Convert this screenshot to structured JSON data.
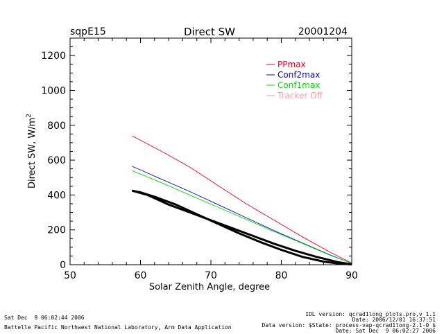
{
  "header": {
    "site": "sqpE15",
    "date": "20001204"
  },
  "chart_data": {
    "type": "line",
    "title": "Direct SW",
    "xlabel": "Solar Zenith Angle, degree",
    "ylabel_main": "Direct SW, W/m",
    "ylabel_sup": "2",
    "xlim": [
      50,
      90
    ],
    "ylim": [
      0,
      1300
    ],
    "xticks": [
      50,
      60,
      70,
      80,
      90
    ],
    "yticks": [
      0,
      200,
      400,
      600,
      800,
      1000,
      1200
    ],
    "legend_position": "top-right",
    "grid": false,
    "series": [
      {
        "name": "PPmax",
        "color": "#e8001c",
        "style": "thin",
        "x": [
          58.8,
          63,
          67,
          71,
          75,
          79,
          83,
          87,
          90
        ],
        "y": [
          740,
          650,
          560,
          455,
          350,
          255,
          160,
          70,
          10
        ]
      },
      {
        "name": "Conf2max",
        "color": "#0000cc",
        "style": "thin",
        "x": [
          58.8,
          63,
          67,
          71,
          75,
          79,
          83,
          87,
          90
        ],
        "y": [
          565,
          490,
          420,
          345,
          270,
          195,
          125,
          55,
          8
        ]
      },
      {
        "name": "Conf1max",
        "color": "#00dd00",
        "style": "thin",
        "x": [
          58.8,
          63,
          67,
          71,
          75,
          79,
          83,
          87,
          90
        ],
        "y": [
          540,
          470,
          400,
          330,
          260,
          190,
          122,
          53,
          8
        ]
      },
      {
        "name": "Tracker Off",
        "color": "#ff9a9a",
        "style": "none",
        "x": [],
        "y": []
      },
      {
        "name": "",
        "color": "#000000",
        "style": "thick",
        "x": [
          58.8,
          61,
          64,
          67,
          70,
          73,
          76,
          79,
          82,
          85,
          88,
          90
        ],
        "y": [
          425,
          400,
          345,
          300,
          255,
          210,
          165,
          120,
          80,
          45,
          15,
          2
        ]
      },
      {
        "name": "",
        "color": "#000000",
        "style": "thick",
        "x": [
          58.8,
          60,
          62,
          65,
          68,
          71,
          74,
          77,
          80,
          83,
          86,
          88,
          90
        ],
        "y": [
          425,
          415,
          390,
          345,
          290,
          235,
          180,
          130,
          85,
          45,
          18,
          7,
          2
        ]
      }
    ]
  },
  "footer": {
    "left_date": "Sat Dec  9 06:02:44 2006",
    "left_org": "Battelle Pacific Northwest National Laboratory, Arm Data Application",
    "right_lines": [
      "IDL version: qcrad1long_plots.pro,v 1.1",
      "Date: 2006/12/01 16:37:51",
      "Data version: $State: process-vap-qcrad1long-2.1-0 $",
      "Date: Sat Dec  9 06:02:27 2006"
    ]
  }
}
